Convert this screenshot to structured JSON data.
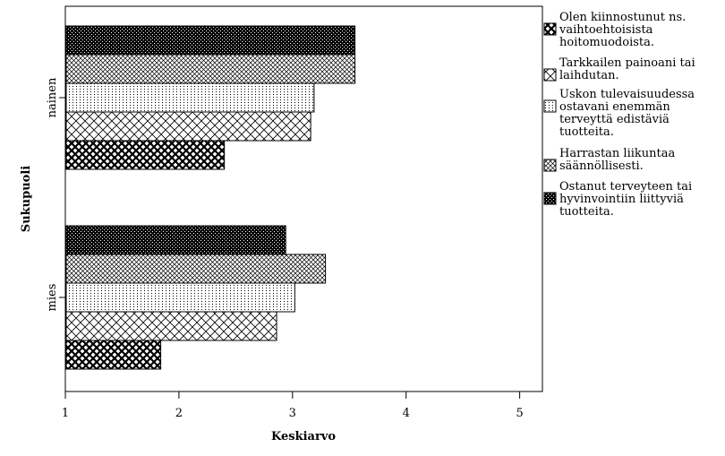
{
  "chart_data": {
    "type": "bar",
    "orientation": "horizontal",
    "xlabel": "Keskiarvo",
    "ylabel": "Sukupuoli",
    "xlim": [
      1,
      5.2
    ],
    "xticks": [
      1,
      2,
      3,
      4,
      5
    ],
    "xtick_labels": [
      "1",
      "2",
      "3",
      "4",
      "5"
    ],
    "categories": [
      "nainen",
      "mies"
    ],
    "legend_position": "right",
    "grid": false,
    "series": [
      {
        "name": "Olen kiinnostunut ns. vaihtoehtoisista hoitomuodoista.",
        "legend_lines": [
          "Olen kiinnostunut ns.",
          "vaihtoehtoisista",
          "hoitomuodoista."
        ],
        "pattern": "crosshatch-light",
        "values": [
          2.4,
          1.84
        ]
      },
      {
        "name": "Tarkkailen painoani tai laihdutan.",
        "legend_lines": [
          "Tarkkailen painoani tai",
          "laihdutan."
        ],
        "pattern": "diagonal-cross",
        "values": [
          3.16,
          2.86
        ]
      },
      {
        "name": "Uskon tulevaisuudessa ostavani enemmän terveyttä edistäviä tuotteita.",
        "legend_lines": [
          "Uskon tulevaisuudessa",
          "ostavani enemmän",
          "terveyttä edistäviä",
          "tuotteita."
        ],
        "pattern": "dots",
        "values": [
          3.19,
          3.02
        ]
      },
      {
        "name": "Harrastan liikuntaa säännöllisesti.",
        "legend_lines": [
          "Harrastan liikuntaa",
          "säännöllisesti."
        ],
        "pattern": "fine-crosshatch",
        "values": [
          3.55,
          3.29
        ]
      },
      {
        "name": "Ostanut terveyteen tai hyvinvointiin liittyviä tuotteita.",
        "legend_lines": [
          "Ostanut terveyteen tai",
          "hyvinvointiin liittyviä",
          "tuotteita."
        ],
        "pattern": "dense-dark",
        "values": [
          3.55,
          2.94
        ]
      }
    ]
  }
}
